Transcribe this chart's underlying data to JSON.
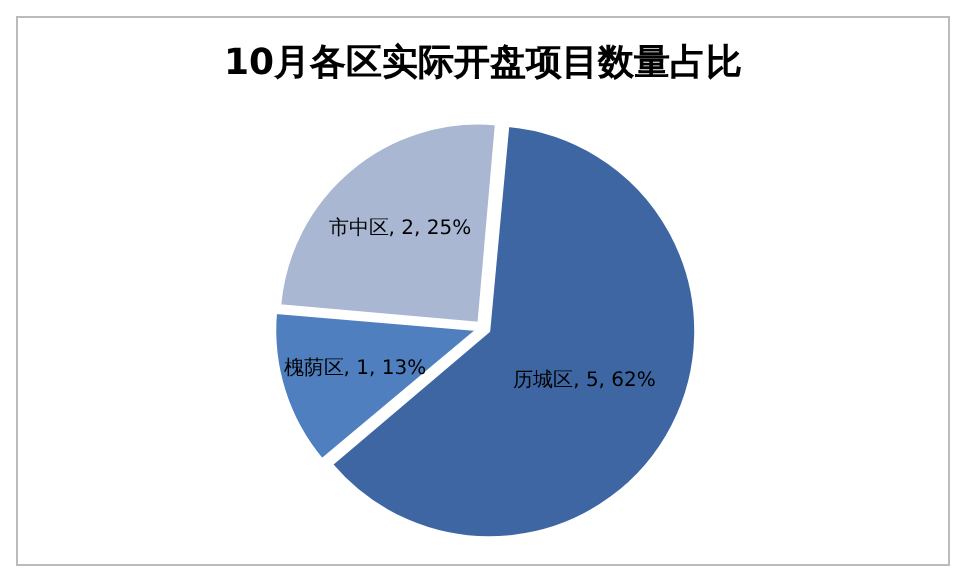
{
  "chart_data": {
    "type": "pie",
    "title": "10月各区实际开盘项目数量占比",
    "categories": [
      "历城区",
      "槐荫区",
      "市中区"
    ],
    "values": [
      5,
      1,
      2
    ],
    "colors": [
      "#3d66a3",
      "#4f7fbf",
      "#a9b7d3"
    ],
    "value_labels": [
      "5, 62%",
      "1, 13%",
      "2, 25%"
    ],
    "legend": false
  }
}
